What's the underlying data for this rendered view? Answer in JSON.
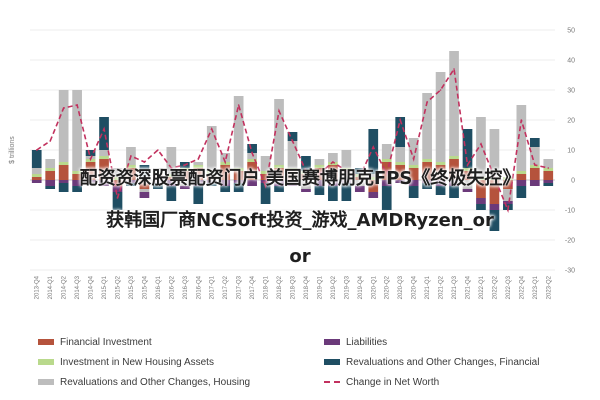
{
  "chart_data": {
    "type": "bar",
    "stacked": true,
    "categories": [
      "2013-Q4",
      "2014-Q1",
      "2014-Q2",
      "2014-Q3",
      "2014-Q4",
      "2015-Q1",
      "2015-Q2",
      "2015-Q3",
      "2015-Q4",
      "2016-Q1",
      "2016-Q2",
      "2016-Q3",
      "2016-Q4",
      "2017-Q1",
      "2017-Q2",
      "2017-Q3",
      "2017-Q4",
      "2018-Q1",
      "2018-Q2",
      "2018-Q3",
      "2018-Q4",
      "2019-Q1",
      "2019-Q2",
      "2019-Q3",
      "2019-Q4",
      "2020-Q1",
      "2020-Q2",
      "2020-Q3",
      "2020-Q4",
      "2021-Q1",
      "2021-Q2",
      "2021-Q3",
      "2021-Q4",
      "2022-Q1",
      "2022-Q2",
      "2022-Q3",
      "2022-Q4",
      "2023-Q1",
      "2023-Q2"
    ],
    "series": [
      {
        "name": "Financial Investment",
        "color": "#b5533c",
        "values": [
          1,
          3,
          5,
          2,
          6,
          7,
          -2,
          4,
          -3,
          2,
          1,
          3,
          4,
          2,
          5,
          3,
          6,
          2,
          4,
          3,
          2,
          4,
          5,
          3,
          1,
          -4,
          6,
          5,
          4,
          6,
          5,
          7,
          3,
          -6,
          -8,
          -3,
          2,
          4,
          3
        ]
      },
      {
        "name": "Investment in New Housing Assets",
        "color": "#b9d98c",
        "values": [
          1,
          1,
          1,
          1,
          1,
          1,
          1,
          1,
          1,
          1,
          1,
          1,
          1,
          1,
          1,
          1,
          1,
          1,
          1,
          1,
          1,
          1,
          1,
          1,
          1,
          1,
          1,
          1,
          1,
          1,
          1,
          1,
          1,
          1,
          1,
          1,
          1,
          1,
          1
        ]
      },
      {
        "name": "Revaluations and Other Changes, Housing",
        "color": "#bdbdbd",
        "values": [
          2,
          3,
          24,
          27,
          1,
          2,
          3,
          6,
          -1,
          1,
          9,
          -2,
          1,
          15,
          3,
          24,
          2,
          5,
          22,
          9,
          -3,
          2,
          3,
          6,
          -2,
          1,
          5,
          5,
          9,
          22,
          30,
          35,
          -3,
          20,
          16,
          -4,
          22,
          6,
          3
        ]
      },
      {
        "name": "Liabilities",
        "color": "#6b3a7a",
        "values": [
          -1,
          -2,
          -1,
          -2,
          -1,
          -2,
          -2,
          -1,
          -2,
          -1,
          -2,
          -1,
          -2,
          -1,
          -2,
          -1,
          -2,
          -1,
          -2,
          -2,
          -1,
          -2,
          -2,
          -1,
          -2,
          -2,
          -2,
          -1,
          -2,
          -1,
          -2,
          -2,
          -1,
          -2,
          -2,
          -1,
          -2,
          -2,
          -1
        ]
      },
      {
        "name": "Revaluations and Other Changes, Financial",
        "color": "#1f4e63",
        "values": [
          6,
          -1,
          -3,
          -2,
          2,
          11,
          -6,
          -1,
          4,
          -2,
          -5,
          2,
          -6,
          -1,
          -2,
          -3,
          3,
          -7,
          -2,
          3,
          5,
          -3,
          -5,
          -6,
          2,
          15,
          -8,
          10,
          -4,
          -2,
          -3,
          -4,
          13,
          -2,
          -7,
          -2,
          -4,
          3,
          -1
        ]
      }
    ],
    "net_worth": {
      "name": "Change in Net Worth",
      "color": "#c2315e",
      "values": [
        10,
        13,
        24,
        25,
        7,
        17,
        -6,
        8,
        6,
        10,
        4,
        5,
        7,
        17,
        6,
        25,
        9,
        -2,
        23,
        13,
        3,
        2,
        6,
        3,
        1,
        11,
        2,
        20,
        7,
        26,
        30,
        37,
        5,
        12,
        1,
        -10,
        20,
        5,
        4
      ]
    },
    "ylim": [
      -30,
      50
    ],
    "yticks": [
      -30,
      -20,
      -10,
      0,
      10,
      20,
      30,
      40,
      50
    ],
    "ylabel": "$ trillions",
    "grid": true,
    "legend_position": "bottom"
  },
  "overlay": {
    "line1": "配资资深股票配资门户 美国赛博朋克FPS《终极失控》",
    "line2": "获韩国厂商NCSoft投资_游戏_AMDRyzen_or",
    "line3": "or"
  },
  "legend": {
    "financial_investment": "Financial Investment",
    "new_housing": "Investment in New Housing Assets",
    "reval_housing": "Revaluations and Other Changes, Housing",
    "liabilities": "Liabilities",
    "reval_financial": "Revaluations and Other Changes, Financial",
    "net_worth": "Change in Net Worth"
  }
}
